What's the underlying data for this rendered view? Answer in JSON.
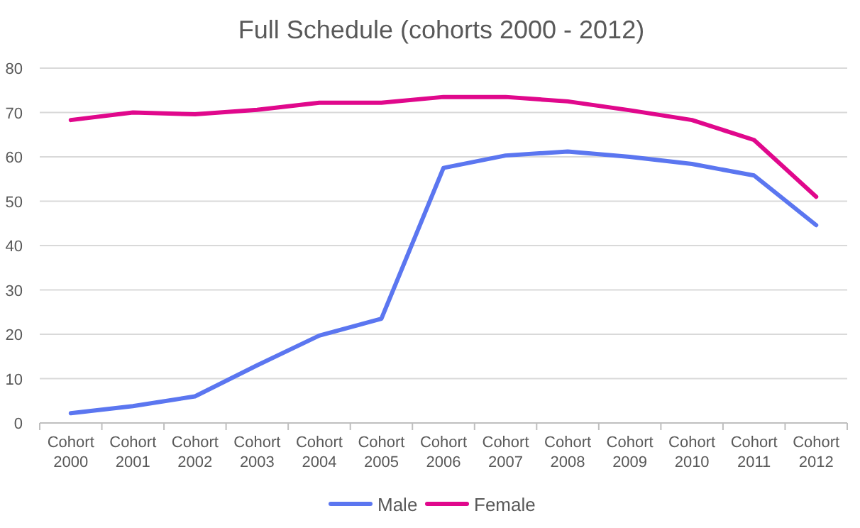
{
  "chart_data": {
    "type": "line",
    "title": "Full Schedule (cohorts 2000  - 2012)",
    "categories": [
      "Cohort 2000",
      "Cohort 2001",
      "Cohort 2002",
      "Cohort 2003",
      "Cohort 2004",
      "Cohort 2005",
      "Cohort 2006",
      "Cohort 2007",
      "Cohort 2008",
      "Cohort 2009",
      "Cohort 2010",
      "Cohort 2011",
      "Cohort 2012"
    ],
    "series": [
      {
        "name": "Male",
        "color": "#5b76f0",
        "values": [
          2.2,
          3.8,
          6,
          13,
          19.7,
          23.5,
          57.5,
          60.3,
          61.2,
          60,
          58.4,
          55.8,
          44.6
        ]
      },
      {
        "name": "Female",
        "color": "#e0088c",
        "values": [
          68.3,
          70,
          69.6,
          70.6,
          72.2,
          72.2,
          73.5,
          73.5,
          72.5,
          70.5,
          68.3,
          63.8,
          51
        ]
      }
    ],
    "ylim": [
      0,
      80
    ],
    "yticks": [
      0,
      10,
      20,
      30,
      40,
      50,
      60,
      70,
      80
    ],
    "grid": "y",
    "legend": "bottom",
    "line_style": "solid",
    "marker": "none"
  }
}
